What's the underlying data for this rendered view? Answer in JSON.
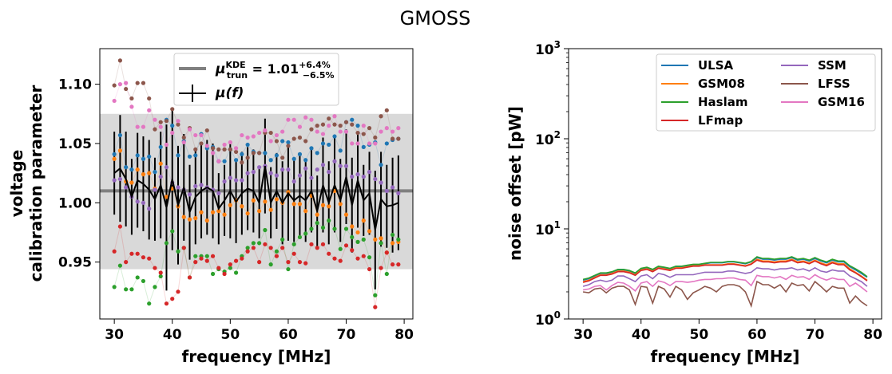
{
  "suptitle": "GMOSS",
  "colors": {
    "ULSA": "#1f77b4",
    "GSM08": "#ff7f0e",
    "Haslam": "#2ca02c",
    "LFmap": "#d62728",
    "SSM": "#9467bd",
    "LFSS": "#8c564b",
    "GSM16": "#e377c2",
    "band": "#d9d9d9",
    "kde_line": "#808080",
    "mu_line": "#000000"
  },
  "chart_data": [
    {
      "type": "scatter",
      "xlabel": "frequency [MHz]",
      "ylabel_line1": "voltage",
      "ylabel_line2": "calibration parameter",
      "xlim": [
        27.5,
        81.5
      ],
      "ylim": [
        0.902,
        1.13
      ],
      "xticks": [
        30,
        40,
        50,
        60,
        70,
        80
      ],
      "yticks": [
        0.95,
        1.0,
        1.05,
        1.1
      ],
      "ytick_labels": [
        "0.95",
        "1.00",
        "1.05",
        "1.10"
      ],
      "kde": {
        "value": 1.01,
        "band": [
          0.944,
          1.075
        ],
        "legend_label": "μ_trun^KDE = 1.01 (+6.4% / −6.5%)"
      },
      "mu_legend_label": "μ(f)",
      "x": [
        30,
        31,
        32,
        33,
        34,
        35,
        36,
        37,
        38,
        39,
        40,
        41,
        42,
        43,
        44,
        45,
        46,
        47,
        48,
        49,
        50,
        51,
        52,
        53,
        54,
        55,
        56,
        57,
        58,
        59,
        60,
        61,
        62,
        63,
        64,
        65,
        66,
        67,
        68,
        69,
        70,
        71,
        72,
        73,
        74,
        75,
        76,
        77,
        78,
        79
      ],
      "series": [
        {
          "name": "ULSA",
          "values": [
            1.041,
            1.057,
            1.03,
            1.028,
            1.04,
            1.037,
            1.039,
            1.026,
            1.047,
            1.07,
            1.065,
            1.04,
            1.052,
            1.039,
            1.04,
            1.058,
            1.046,
            1.047,
            1.035,
            1.035,
            1.045,
            1.036,
            1.041,
            1.049,
            1.043,
            1.042,
            1.042,
            1.036,
            1.04,
            1.052,
            1.051,
            1.037,
            1.041,
            1.036,
            1.046,
            1.042,
            1.05,
            1.049,
            1.056,
            1.044,
            1.068,
            1.07,
            1.065,
            1.047,
            1.049,
            1.051,
            1.032,
            1.05,
            1.053,
            1.054
          ]
        },
        {
          "name": "GSM08",
          "values": [
            1.037,
            1.044,
            1.018,
            1.017,
            1.028,
            1.024,
            1.025,
            1.012,
            1.033,
            1.005,
            1.012,
            0.997,
            0.988,
            0.986,
            0.987,
            0.992,
            0.985,
            0.992,
            0.993,
            0.99,
            0.998,
            1.002,
            0.997,
            0.991,
            1.002,
            0.993,
            1.001,
            0.994,
            1.003,
            1.0,
            1.009,
            0.999,
            0.999,
            0.993,
            1.006,
            0.99,
            0.998,
            0.997,
            1.01,
            0.999,
            0.99,
            0.98,
            0.975,
            0.985,
            0.976,
            0.969,
            0.97,
            0.958,
            0.966,
            0.967
          ]
        },
        {
          "name": "Haslam",
          "values": [
            0.929,
            0.947,
            0.927,
            0.927,
            0.937,
            0.934,
            0.915,
            0.929,
            0.938,
            0.966,
            0.976,
            0.959,
            0.962,
            0.937,
            0.955,
            0.955,
            0.955,
            0.94,
            0.944,
            0.942,
            0.945,
            0.941,
            0.955,
            0.962,
            0.966,
            0.966,
            0.977,
            0.948,
            0.959,
            0.969,
            0.944,
            0.965,
            0.971,
            0.974,
            0.978,
            0.983,
            0.979,
            0.985,
            0.978,
            0.961,
            0.978,
            0.971,
            0.967,
            0.969,
            0.954,
            0.922,
            0.966,
            0.94,
            0.973,
            0.969
          ]
        },
        {
          "name": "LFmap",
          "values": [
            0.959,
            0.98,
            0.95,
            0.957,
            0.957,
            0.954,
            0.953,
            0.945,
            0.941,
            0.915,
            0.919,
            0.925,
            0.962,
            0.937,
            0.95,
            0.953,
            0.951,
            0.955,
            0.945,
            0.94,
            0.948,
            0.951,
            0.953,
            0.959,
            0.962,
            0.95,
            0.965,
            0.962,
            0.955,
            0.962,
            0.95,
            0.957,
            0.95,
            0.949,
            0.965,
            0.962,
            0.965,
            0.957,
            0.953,
            0.951,
            0.964,
            0.96,
            0.953,
            0.955,
            0.944,
            0.912,
            0.945,
            0.958,
            0.948,
            0.948
          ]
        },
        {
          "name": "SSM",
          "values": [
            1.019,
            1.02,
            1.013,
            1.005,
            1.001,
            1.0,
            0.995,
            1.011,
            1.022,
            1.03,
            1.017,
            1.013,
            1.011,
            1.007,
            1.014,
            1.015,
            1.013,
            1.011,
            1.008,
            1.018,
            1.021,
            1.019,
            1.019,
            1.025,
            1.026,
            1.03,
            1.031,
            1.025,
            1.023,
            1.028,
            1.028,
            1.018,
            1.023,
            1.029,
            1.021,
            1.028,
            1.032,
            1.026,
            1.035,
            1.031,
            1.031,
            1.022,
            1.024,
            1.022,
            1.026,
            1.02,
            1.017,
            1.01,
            1.013,
            1.008
          ]
        },
        {
          "name": "LFSS",
          "values": [
            1.099,
            1.12,
            1.096,
            1.088,
            1.101,
            1.101,
            1.088,
            1.062,
            1.068,
            1.069,
            1.079,
            1.066,
            1.055,
            1.063,
            1.045,
            1.05,
            1.061,
            1.046,
            1.045,
            1.045,
            1.045,
            1.043,
            1.034,
            1.038,
            1.042,
            1.042,
            1.059,
            1.059,
            1.052,
            1.038,
            1.048,
            1.054,
            1.055,
            1.052,
            1.062,
            1.065,
            1.066,
            1.071,
            1.066,
            1.065,
            1.068,
            1.066,
            1.059,
            1.058,
            1.063,
            1.055,
            1.073,
            1.078,
            1.054,
            1.054
          ]
        },
        {
          "name": "GSM16",
          "values": [
            1.086,
            1.1,
            1.101,
            1.081,
            1.064,
            1.064,
            1.078,
            1.07,
            1.064,
            1.049,
            1.059,
            1.069,
            1.051,
            1.062,
            1.057,
            1.057,
            1.048,
            1.042,
            1.035,
            1.049,
            1.051,
            1.046,
            1.057,
            1.055,
            1.056,
            1.059,
            1.061,
            1.052,
            1.057,
            1.06,
            1.07,
            1.07,
            1.064,
            1.072,
            1.07,
            1.06,
            1.058,
            1.065,
            1.073,
            1.06,
            1.06,
            1.05,
            1.05,
            1.065,
            1.05,
            1.05,
            1.06,
            1.063,
            1.06,
            1.063
          ]
        }
      ],
      "mean_values": [
        1.025,
        1.029,
        1.02,
        1.005,
        1.019,
        1.016,
        1.011,
        1.003,
        1.015,
        0.996,
        1.02,
        0.998,
        1.013,
        0.992,
        1.005,
        1.01,
        1.013,
        1.01,
        0.995,
        1.002,
        1.01,
        1.001,
        1.008,
        1.012,
        1.01,
        1.0,
        1.031,
        1.0,
        1.01,
        1.0,
        1.008,
        1.002,
        1.006,
        1.002,
        1.01,
        0.993,
        1.015,
        1.0,
        1.015,
        1.002,
        1.022,
        0.998,
        1.019,
        1.002,
        1.008,
        0.977,
        1.003,
        0.997,
        0.998,
        1.0
      ],
      "mean_errors": [
        0.035,
        0.045,
        0.04,
        0.032,
        0.04,
        0.04,
        0.042,
        0.035,
        0.045,
        0.07,
        0.06,
        0.05,
        0.045,
        0.04,
        0.04,
        0.04,
        0.04,
        0.04,
        0.03,
        0.03,
        0.04,
        0.035,
        0.035,
        0.035,
        0.035,
        0.03,
        0.04,
        0.03,
        0.032,
        0.035,
        0.04,
        0.035,
        0.035,
        0.035,
        0.035,
        0.03,
        0.04,
        0.035,
        0.04,
        0.035,
        0.04,
        0.04,
        0.04,
        0.03,
        0.035,
        0.05,
        0.04,
        0.035,
        0.04,
        0.04
      ]
    },
    {
      "type": "line",
      "xlabel": "frequency [MHz]",
      "ylabel": "noise offset [pW]",
      "yscale": "log",
      "xlim": [
        27.5,
        81.5
      ],
      "ylim": [
        1,
        1000
      ],
      "xticks": [
        30,
        40,
        50,
        60,
        70,
        80
      ],
      "yticks": [
        1,
        10,
        100,
        1000
      ],
      "ytick_labels": [
        {
          "base": "10",
          "exp": "0"
        },
        {
          "base": "10",
          "exp": "1"
        },
        {
          "base": "10",
          "exp": "2"
        },
        {
          "base": "10",
          "exp": "3"
        }
      ],
      "legend_columns": 2,
      "legend_placement": "top-right",
      "x": [
        30,
        31,
        32,
        33,
        34,
        35,
        36,
        37,
        38,
        39,
        40,
        41,
        42,
        43,
        44,
        45,
        46,
        47,
        48,
        49,
        50,
        51,
        52,
        53,
        54,
        55,
        56,
        57,
        58,
        59,
        60,
        61,
        62,
        63,
        64,
        65,
        66,
        67,
        68,
        69,
        70,
        71,
        72,
        73,
        74,
        75,
        76,
        77,
        78,
        79
      ],
      "series": [
        {
          "name": "ULSA",
          "values": [
            2.7,
            2.8,
            3.0,
            3.2,
            3.2,
            3.3,
            3.5,
            3.5,
            3.4,
            3.2,
            3.6,
            3.7,
            3.5,
            3.8,
            3.7,
            3.6,
            3.8,
            3.8,
            3.9,
            4.0,
            4.0,
            4.1,
            4.2,
            4.2,
            4.2,
            4.3,
            4.3,
            4.2,
            4.1,
            4.3,
            4.8,
            4.6,
            4.6,
            4.5,
            4.6,
            4.6,
            4.8,
            4.5,
            4.6,
            4.4,
            4.7,
            4.4,
            4.2,
            4.5,
            4.3,
            4.3,
            3.8,
            3.5,
            3.2,
            2.9
          ]
        },
        {
          "name": "GSM08",
          "values": [
            2.6,
            2.7,
            2.9,
            3.1,
            3.1,
            3.2,
            3.4,
            3.4,
            3.3,
            3.1,
            3.5,
            3.6,
            3.4,
            3.7,
            3.6,
            3.5,
            3.7,
            3.7,
            3.8,
            3.9,
            3.9,
            4.0,
            4.0,
            4.0,
            4.0,
            4.1,
            4.1,
            4.0,
            3.9,
            4.1,
            4.6,
            4.4,
            4.4,
            4.3,
            4.4,
            4.4,
            4.6,
            4.3,
            4.4,
            4.2,
            4.5,
            4.2,
            4.0,
            4.3,
            4.1,
            4.1,
            3.6,
            3.3,
            3.0,
            2.7
          ]
        },
        {
          "name": "Haslam",
          "values": [
            2.75,
            2.85,
            3.05,
            3.25,
            3.25,
            3.35,
            3.55,
            3.55,
            3.45,
            3.25,
            3.65,
            3.75,
            3.55,
            3.85,
            3.75,
            3.65,
            3.85,
            3.85,
            3.95,
            4.05,
            4.05,
            4.15,
            4.25,
            4.25,
            4.25,
            4.35,
            4.35,
            4.25,
            4.15,
            4.35,
            4.9,
            4.7,
            4.7,
            4.6,
            4.7,
            4.7,
            4.9,
            4.6,
            4.7,
            4.5,
            4.8,
            4.5,
            4.3,
            4.6,
            4.4,
            4.4,
            3.9,
            3.6,
            3.3,
            2.95
          ]
        },
        {
          "name": "LFmap",
          "values": [
            2.55,
            2.65,
            2.85,
            3.05,
            3.05,
            3.15,
            3.35,
            3.35,
            3.25,
            3.05,
            3.45,
            3.55,
            3.35,
            3.65,
            3.55,
            3.45,
            3.65,
            3.65,
            3.75,
            3.85,
            3.85,
            3.95,
            3.95,
            3.95,
            3.95,
            4.05,
            4.05,
            3.95,
            3.85,
            4.05,
            4.5,
            4.3,
            4.3,
            4.2,
            4.3,
            4.3,
            4.5,
            4.2,
            4.3,
            4.1,
            4.4,
            4.1,
            3.9,
            4.2,
            4.0,
            4.0,
            3.5,
            3.25,
            2.95,
            2.65
          ]
        },
        {
          "name": "SSM",
          "values": [
            2.3,
            2.4,
            2.6,
            2.7,
            2.6,
            2.7,
            3.0,
            3.0,
            2.8,
            2.6,
            3.0,
            3.1,
            2.8,
            3.2,
            3.1,
            2.9,
            3.1,
            3.1,
            3.1,
            3.1,
            3.2,
            3.3,
            3.3,
            3.3,
            3.3,
            3.4,
            3.4,
            3.3,
            3.2,
            3.3,
            3.7,
            3.6,
            3.6,
            3.5,
            3.6,
            3.6,
            3.7,
            3.5,
            3.6,
            3.4,
            3.7,
            3.4,
            3.3,
            3.5,
            3.4,
            3.4,
            3.0,
            2.8,
            2.6,
            2.3
          ]
        },
        {
          "name": "LFSS",
          "values": [
            2.0,
            1.95,
            2.15,
            2.2,
            1.95,
            2.2,
            2.3,
            2.3,
            2.1,
            1.45,
            2.3,
            2.25,
            1.5,
            2.3,
            2.15,
            1.75,
            2.3,
            2.1,
            1.65,
            1.95,
            2.1,
            2.3,
            2.2,
            2.0,
            2.3,
            2.4,
            2.4,
            2.3,
            2.0,
            1.4,
            2.6,
            2.4,
            2.4,
            2.2,
            2.4,
            2.0,
            2.5,
            2.35,
            2.4,
            2.05,
            2.6,
            2.3,
            2.0,
            2.3,
            2.2,
            2.2,
            1.5,
            1.8,
            1.55,
            1.4
          ]
        },
        {
          "name": "GSM16",
          "values": [
            2.1,
            2.15,
            2.3,
            2.35,
            2.1,
            2.35,
            2.55,
            2.5,
            2.3,
            2.05,
            2.5,
            2.6,
            2.3,
            2.65,
            2.55,
            2.35,
            2.6,
            2.6,
            2.55,
            2.6,
            2.7,
            2.75,
            2.75,
            2.8,
            2.8,
            2.85,
            2.85,
            2.75,
            2.7,
            2.35,
            3.05,
            2.95,
            2.95,
            2.85,
            2.95,
            2.75,
            3.05,
            2.9,
            2.95,
            2.75,
            3.1,
            2.85,
            2.7,
            2.85,
            2.75,
            2.75,
            2.3,
            2.5,
            2.25,
            2.0
          ]
        }
      ]
    }
  ]
}
